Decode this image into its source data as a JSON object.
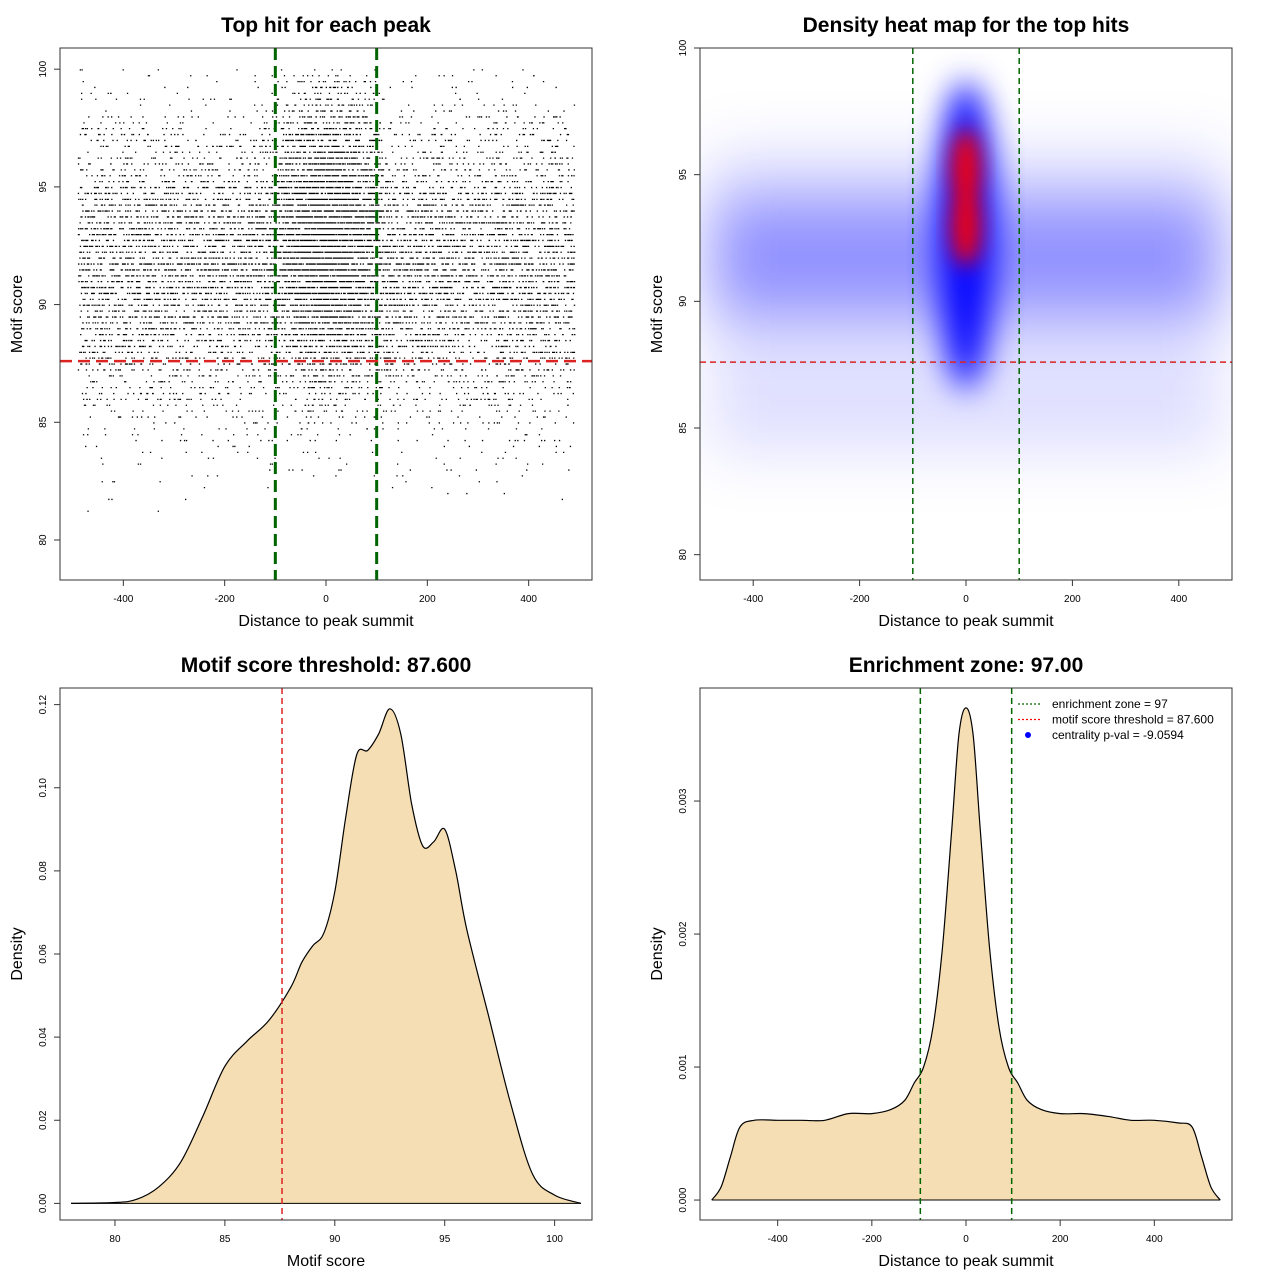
{
  "chart_data": [
    {
      "type": "scatter",
      "title": "Top hit for each peak",
      "xlabel": "Distance to peak summit",
      "ylabel": "Motif score",
      "xlim": [
        -525,
        525
      ],
      "ylim": [
        78.3,
        100.9
      ],
      "xticks": [
        -400,
        -200,
        0,
        200,
        400
      ],
      "yticks": [
        80,
        85,
        90,
        95,
        100
      ],
      "x_tick_labels": [
        "-400",
        "-200",
        "0",
        "200",
        "400"
      ],
      "y_tick_labels": [
        "80",
        "85",
        "90",
        "95",
        "100"
      ],
      "point_color": "#000000",
      "points_summary": {
        "approx_points": 12000,
        "x_range": [
          -490,
          490
        ],
        "y_range": [
          79,
          100
        ],
        "central_enrichment_x": [
          -100,
          100
        ]
      },
      "vlines": [
        -100,
        100
      ],
      "vline_color": "#006400",
      "hline": 87.6,
      "hline_color": "#dd2222",
      "grid": false
    },
    {
      "type": "heatmap",
      "title": "Density heat map for the top hits",
      "xlabel": "Distance to peak summit",
      "ylabel": "Motif score",
      "xlim": [
        -500,
        500
      ],
      "ylim": [
        79,
        100
      ],
      "xticks": [
        -400,
        -200,
        0,
        200,
        400
      ],
      "yticks": [
        80,
        85,
        90,
        95,
        100
      ],
      "x_tick_labels": [
        "-400",
        "-200",
        "0",
        "200",
        "400"
      ],
      "y_tick_labels": [
        "80",
        "85",
        "90",
        "95",
        "100"
      ],
      "colors": [
        "#ffffff",
        "#0000ff",
        "#ff0000"
      ],
      "density_peaks": [
        {
          "x": 0,
          "y": 93,
          "level": "high"
        },
        {
          "x": 0,
          "y": 95.2,
          "level": "high"
        },
        {
          "x": 0,
          "y": 90,
          "level": "medium"
        }
      ],
      "vlines": [
        -100,
        100
      ],
      "vline_color": "#006400",
      "hline": 87.6,
      "hline_color": "#dd2222",
      "grid": false
    },
    {
      "type": "area",
      "title": "Motif score threshold: 87.600",
      "xlabel": "Motif score",
      "ylabel": "Density",
      "xlim": [
        77.5,
        101.7
      ],
      "ylim": [
        -0.004,
        0.124
      ],
      "xticks": [
        80,
        85,
        90,
        95,
        100
      ],
      "yticks": [
        0,
        0.02,
        0.04,
        0.06,
        0.08,
        0.1,
        0.12
      ],
      "x_tick_labels": [
        "80",
        "85",
        "90",
        "95",
        "100"
      ],
      "y_tick_labels": [
        "0.00",
        "0.02",
        "0.04",
        "0.06",
        "0.08",
        "0.10",
        "0.12"
      ],
      "x": [
        78,
        80,
        81,
        82,
        83,
        84,
        85,
        86,
        87,
        88,
        88.5,
        89,
        89.5,
        90,
        90.5,
        91,
        91.5,
        92,
        92.5,
        93,
        93.5,
        94,
        94.5,
        95,
        95.5,
        96,
        97,
        98,
        99,
        100,
        101.2
      ],
      "y": [
        0,
        0.0002,
        0.001,
        0.004,
        0.01,
        0.021,
        0.033,
        0.039,
        0.044,
        0.052,
        0.058,
        0.062,
        0.065,
        0.075,
        0.093,
        0.108,
        0.109,
        0.113,
        0.119,
        0.113,
        0.096,
        0.086,
        0.087,
        0.09,
        0.08,
        0.066,
        0.045,
        0.024,
        0.007,
        0.002,
        0
      ],
      "fill_color": "#f5deb3",
      "vline": 87.6,
      "vline_color": "#dd2222",
      "grid": false
    },
    {
      "type": "area",
      "title": "Enrichment zone: 97.00",
      "xlabel": "Distance to peak summit",
      "ylabel": "Density",
      "xlim": [
        -565,
        565
      ],
      "ylim": [
        -0.00015,
        0.00385
      ],
      "xticks": [
        -400,
        -200,
        0,
        200,
        400
      ],
      "yticks": [
        0,
        0.001,
        0.002,
        0.003
      ],
      "x_tick_labels": [
        "-400",
        "-200",
        "0",
        "200",
        "400"
      ],
      "y_tick_labels": [
        "0.000",
        "0.001",
        "0.002",
        "0.003"
      ],
      "x": [
        -540,
        -520,
        -500,
        -480,
        -450,
        -400,
        -350,
        -300,
        -250,
        -200,
        -160,
        -130,
        -110,
        -90,
        -70,
        -50,
        -30,
        -15,
        0,
        15,
        30,
        50,
        70,
        90,
        110,
        130,
        160,
        200,
        250,
        300,
        350,
        400,
        450,
        480,
        500,
        520,
        540
      ],
      "y": [
        0,
        0.0001,
        0.00033,
        0.00055,
        0.0006,
        0.0006,
        0.0006,
        0.0006,
        0.00065,
        0.00065,
        0.00068,
        0.00075,
        0.00088,
        0.001,
        0.0013,
        0.0019,
        0.0028,
        0.0035,
        0.0037,
        0.0035,
        0.0028,
        0.0019,
        0.0013,
        0.001,
        0.00088,
        0.00075,
        0.00068,
        0.00065,
        0.00065,
        0.00063,
        0.0006,
        0.0006,
        0.00058,
        0.00055,
        0.00033,
        0.0001,
        0
      ],
      "fill_color": "#f5deb3",
      "vlines": [
        -97,
        97
      ],
      "vline_color": "#006400",
      "legend": {
        "position": "top-right",
        "entries": [
          {
            "label": "enrichment zone = 97",
            "color": "#006400",
            "marker": "dotted-line"
          },
          {
            "label": "motif score threshold = 87.600",
            "color": "#ff0000",
            "marker": "dotted-line"
          },
          {
            "label": "centrality p-val = -9.0594",
            "color": "#0000ff",
            "marker": "dot"
          }
        ]
      },
      "grid": false
    }
  ]
}
